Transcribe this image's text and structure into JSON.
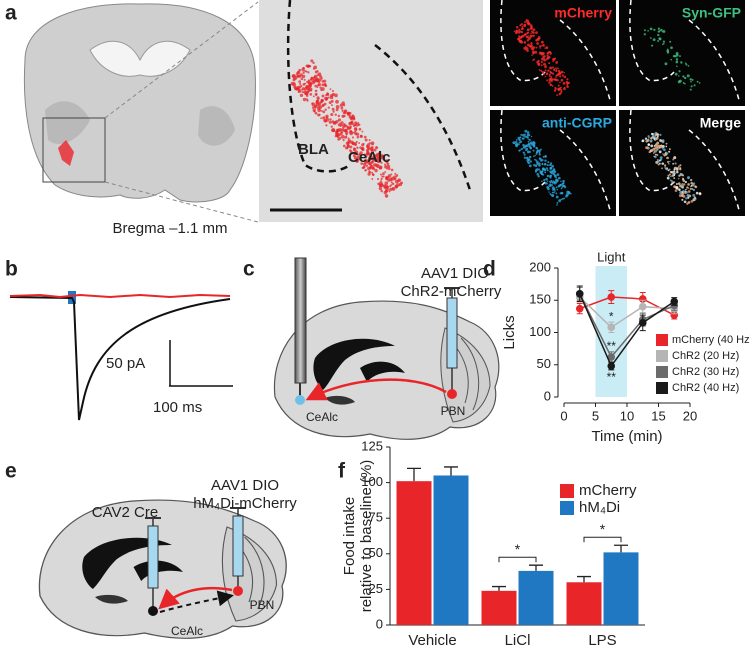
{
  "figure": {
    "panel_labels": [
      "a",
      "b",
      "c",
      "d",
      "e",
      "f"
    ],
    "a": {
      "caption": "Bregma –1.1 mm",
      "zoom_labels": [
        "BLA",
        "CeAlc"
      ],
      "channels": [
        {
          "name": "mCherry",
          "color": "#ff2a2a"
        },
        {
          "name": "Syn-GFP",
          "color": "#3fbf7f"
        },
        {
          "name": "anti-CGRP",
          "color": "#2aa8e0"
        },
        {
          "name": "Merge",
          "color": "#ffffff"
        }
      ]
    },
    "b": {
      "scale": [
        "50 pA",
        "100 ms"
      ]
    },
    "c": {
      "virus": [
        "AAV1 DIO",
        "ChR2-mCherry"
      ],
      "regions": [
        "CeAlc",
        "PBN"
      ]
    },
    "e": {
      "virus_cre": "CAV2 Cre",
      "virus": [
        "AAV1 DIO",
        "hM₄Di-mCherry"
      ],
      "regions": [
        "CeAlc",
        "PBN"
      ]
    }
  },
  "chart_data": [
    {
      "type": "line",
      "ylabel": "Licks",
      "xlabel": "Time (min)",
      "x": [
        2.5,
        7.5,
        12.5,
        17.5
      ],
      "xlim": [
        0,
        20
      ],
      "xticks": [
        0,
        5,
        10,
        15,
        20
      ],
      "ylim": [
        0,
        200
      ],
      "yticks": [
        0,
        50,
        100,
        150,
        200
      ],
      "highlight": {
        "label": "Light",
        "xrange": [
          5,
          10
        ],
        "color": "#c9ecf5"
      },
      "series": [
        {
          "name": "mCherry (40 Hz)",
          "color": "#e8262a",
          "values": [
            137,
            155,
            152,
            127
          ],
          "errors": [
            8,
            10,
            10,
            6
          ]
        },
        {
          "name": "ChR2 (20 Hz)",
          "color": "#b5b5b5",
          "values": [
            155,
            108,
            140,
            137
          ],
          "errors": [
            8,
            8,
            10,
            8
          ]
        },
        {
          "name": "ChR2 (30 Hz)",
          "color": "#6b6b6b",
          "values": [
            160,
            62,
            120,
            142
          ],
          "errors": [
            10,
            8,
            10,
            8
          ]
        },
        {
          "name": "ChR2 (40 Hz)",
          "color": "#1a1a1a",
          "values": [
            160,
            48,
            115,
            148
          ],
          "errors": [
            12,
            6,
            12,
            6
          ]
        }
      ],
      "annotations": [
        null,
        "*",
        "**",
        "**"
      ]
    },
    {
      "type": "bar",
      "ylabel": [
        "Food intake",
        "relative to baseline (%)"
      ],
      "categories": [
        "Vehicle",
        "LiCl",
        "LPS"
      ],
      "ylim": [
        0,
        125
      ],
      "yticks": [
        0,
        25,
        50,
        75,
        100,
        125
      ],
      "series": [
        {
          "name": "mCherry",
          "color": "#e8262a",
          "values": [
            101,
            24,
            30
          ],
          "errors": [
            9,
            3,
            4
          ]
        },
        {
          "name": "hM₄Di",
          "color": "#1f78c1",
          "values": [
            105,
            38,
            51
          ],
          "errors": [
            6,
            4,
            5
          ]
        }
      ],
      "significance": [
        null,
        "*",
        "*"
      ]
    }
  ]
}
